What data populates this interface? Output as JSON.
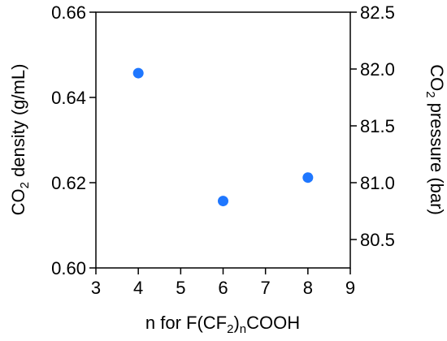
{
  "chart_data": {
    "type": "scatter",
    "title": "",
    "xlabel": {
      "parts": [
        "n for F(CF",
        "2",
        ")",
        "n",
        "COOH"
      ]
    },
    "ylabel_left": {
      "parts": [
        "CO",
        "2",
        " density (g/mL)"
      ]
    },
    "ylabel_right": {
      "parts": [
        "CO",
        "2",
        " pressure (bar)"
      ]
    },
    "xlim": [
      3,
      9
    ],
    "ylim_left": [
      0.6,
      0.66
    ],
    "ylim_right": [
      80.25,
      82.5
    ],
    "x_ticks": [
      "3",
      "4",
      "5",
      "6",
      "7",
      "8",
      "9"
    ],
    "y_left_ticks": [
      "0.60",
      "0.62",
      "0.64",
      "0.66"
    ],
    "y_right_ticks": [
      "80.5",
      "81.0",
      "81.5",
      "82.0",
      "82.5"
    ],
    "grid": false,
    "marker_color": "#1f77ff",
    "series": [
      {
        "x": [
          4,
          6,
          8
        ],
        "y": [
          0.6457,
          0.6157,
          0.6212
        ]
      }
    ]
  }
}
